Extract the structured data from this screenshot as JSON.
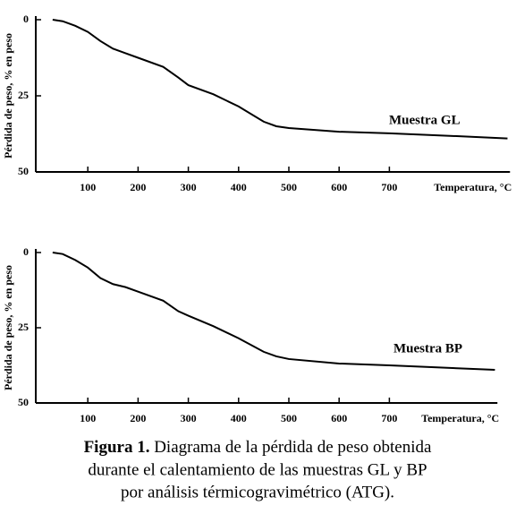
{
  "chart_data": [
    {
      "type": "line",
      "y_label": "Pérdida de peso, % en peso",
      "x_label": "Temperatura, °C",
      "x": [
        30,
        50,
        75,
        100,
        125,
        150,
        175,
        200,
        250,
        280,
        300,
        350,
        400,
        450,
        475,
        500,
        600,
        700,
        800,
        935
      ],
      "series": [
        {
          "name": "Muestra GL",
          "color": "#000000",
          "values": [
            0,
            0.5,
            2,
            4,
            7,
            9.5,
            11,
            12.5,
            15.5,
            19,
            21.5,
            24.5,
            28.5,
            33.5,
            35,
            35.6,
            36.8,
            37.3,
            38,
            39
          ]
        }
      ],
      "xlim": [
        0,
        940
      ],
      "xticks": [
        100,
        200,
        300,
        400,
        500,
        600,
        700
      ],
      "ylim": [
        0,
        50
      ],
      "yticks": [
        0,
        25,
        50
      ],
      "y_inverted": true
    },
    {
      "type": "line",
      "y_label": "Pérdida de peso, % en peso",
      "x_label": "Temperatura, °C",
      "x": [
        30,
        50,
        75,
        100,
        125,
        150,
        175,
        200,
        250,
        280,
        300,
        350,
        400,
        450,
        475,
        500,
        600,
        700,
        800,
        910
      ],
      "series": [
        {
          "name": "Muestra BP",
          "color": "#000000",
          "values": [
            0,
            0.5,
            2.5,
            5,
            8.5,
            10.5,
            11.5,
            13,
            16,
            19.5,
            21,
            24.5,
            28.5,
            33,
            34.5,
            35.4,
            36.9,
            37.5,
            38.2,
            39
          ]
        }
      ],
      "xlim": [
        0,
        915
      ],
      "xticks": [
        100,
        200,
        300,
        400,
        500,
        600,
        700
      ],
      "ylim": [
        0,
        50
      ],
      "yticks": [
        0,
        25,
        50
      ],
      "y_inverted": true
    }
  ],
  "caption": {
    "label": "Figura 1.",
    "lines": [
      "Diagrama de la pérdida de peso obtenida",
      "durante el calentamiento de las muestras GL y BP",
      "por análisis térmicogravimétrico (ATG)."
    ]
  }
}
